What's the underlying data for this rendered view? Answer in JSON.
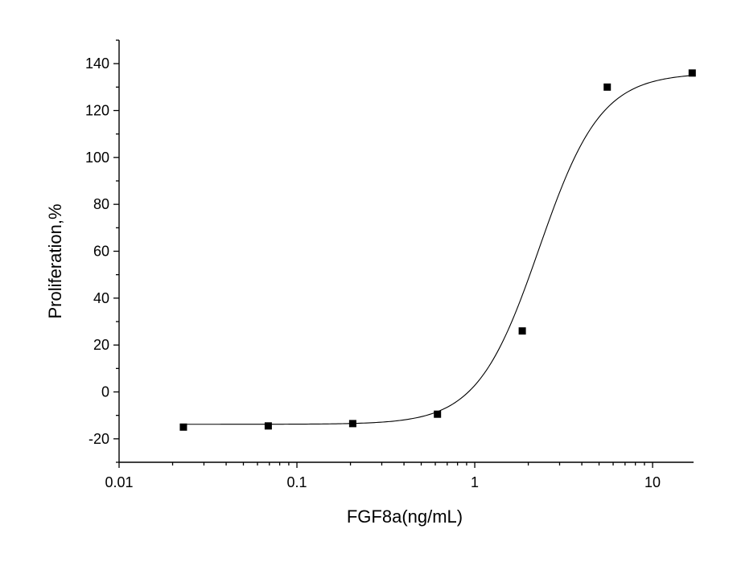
{
  "chart_data": {
    "type": "scatter",
    "title": "",
    "xlabel": "FGF8a(ng/mL)",
    "ylabel": "Proliferation,%",
    "xscale": "log",
    "xlim": [
      0.01,
      17
    ],
    "ylim": [
      -30,
      150
    ],
    "xticks": [
      0.01,
      0.1,
      1,
      10
    ],
    "xtick_labels": [
      "0.01",
      "0.1",
      "1",
      "10"
    ],
    "yticks": [
      -20,
      0,
      20,
      40,
      60,
      80,
      100,
      120,
      140
    ],
    "ytick_labels": [
      "-20",
      "0",
      "20",
      "40",
      "60",
      "80",
      "100",
      "120",
      "140"
    ],
    "grid": false,
    "legend": "none",
    "marker": "square",
    "series": [
      {
        "x": [
          0.023,
          0.069,
          0.206,
          0.617,
          1.85,
          5.56,
          16.7
        ],
        "y": [
          -15,
          -14.5,
          -13.5,
          -9.5,
          26,
          130,
          136
        ]
      }
    ],
    "fit": {
      "type": "sigmoidal",
      "bottom": -13.8,
      "top": 136,
      "ec50": 2.3,
      "hill": 2.5
    },
    "colors": {
      "line": "#000000",
      "marker": "#000000",
      "background": "#ffffff"
    }
  }
}
